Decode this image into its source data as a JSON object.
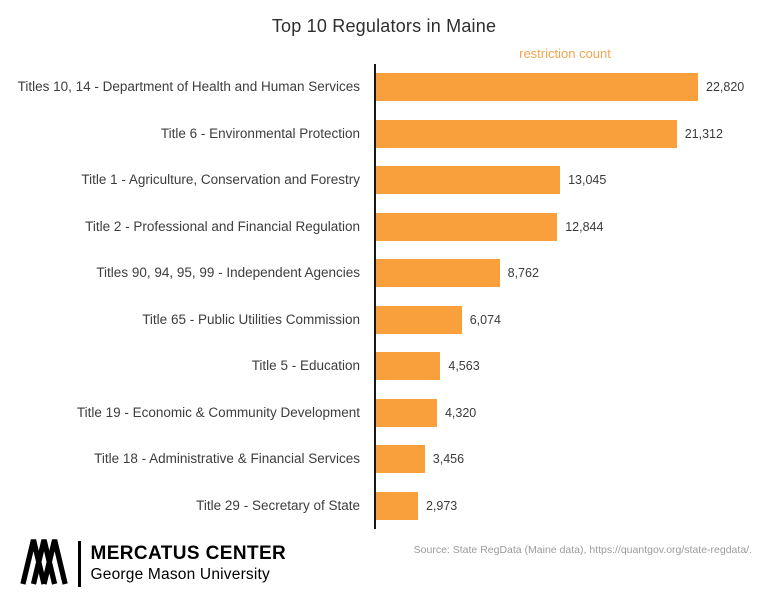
{
  "chart_data": {
    "type": "bar",
    "orientation": "horizontal",
    "title": "Top 10 Regulators in Maine",
    "xlabel": "restriction count",
    "categories": [
      "Titles 10, 14 - Department of Health and Human Services",
      "Title 6 - Environmental Protection",
      "Title 1 - Agriculture, Conservation and Forestry",
      "Title 2 - Professional and Financial Regulation",
      "Titles 90, 94, 95, 99 - Independent Agencies",
      "Title 65 - Public Utilities Commission",
      "Title 5 - Education",
      "Title 19 - Economic & Community Development",
      "Title 18 - Administrative & Financial Services",
      "Title 29 - Secretary of State"
    ],
    "values": [
      22820,
      21312,
      13045,
      12844,
      8762,
      6074,
      4563,
      4320,
      3456,
      2973
    ],
    "value_labels": [
      "22,820",
      "21,312",
      "13,045",
      "12,844",
      "8,762",
      "6,074",
      "4,563",
      "4,320",
      "3,456",
      "2,973"
    ],
    "bar_color": "#F9A03C",
    "axis_label_color": "#F5A452",
    "xlim": [
      0,
      24000
    ],
    "grid": false,
    "legend": false
  },
  "footer": {
    "brand_name": "MERCATUS CENTER",
    "brand_sub": "George Mason University",
    "source": "Source: State RegData (Maine data), https://quantgov.org/state-regdata/."
  }
}
